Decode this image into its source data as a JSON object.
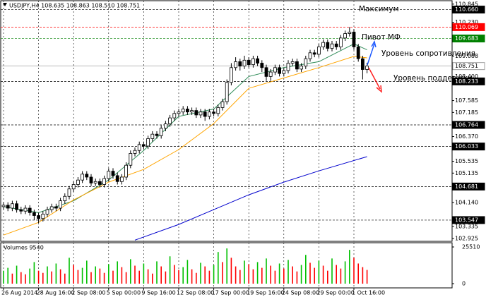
{
  "chart_data": {
    "type": "candlestick",
    "title": "USDJPY,H4  108.635 108.863 108.510 108.751",
    "categories": [
      "26 Aug 2014",
      null,
      null,
      null,
      null,
      null,
      null,
      null,
      "28 Aug 16:00",
      null,
      null,
      null,
      null,
      null,
      null,
      null,
      "2 Sep 08:00",
      null,
      null,
      null,
      null,
      null,
      null,
      null,
      "5 Sep 00:00",
      null,
      null,
      null,
      null,
      null,
      null,
      null,
      "9 Sep 16:00",
      null,
      null,
      null,
      null,
      null,
      null,
      null,
      "12 Sep 08:00",
      null,
      null,
      null,
      null,
      null,
      null,
      null,
      "17 Sep 00:00",
      null,
      null,
      null,
      null,
      null,
      null,
      null,
      "19 Sep 16:00",
      null,
      null,
      null,
      null,
      null,
      null,
      null,
      "24 Sep 08:00",
      null,
      null,
      null,
      null,
      null,
      null,
      null,
      "29 Sep 00:00",
      null,
      null,
      null,
      null,
      null,
      null,
      null,
      "1 Oct 16:00",
      null,
      null,
      null
    ],
    "open": [
      104.0,
      104.05,
      103.95,
      104.1,
      103.9,
      103.85,
      103.95,
      103.8,
      103.7,
      103.6,
      103.75,
      103.9,
      104.0,
      103.95,
      104.2,
      104.35,
      104.6,
      104.75,
      104.9,
      105.1,
      105.0,
      104.8,
      104.85,
      104.75,
      104.95,
      105.2,
      105.05,
      104.85,
      105.0,
      105.4,
      105.8,
      105.9,
      106.1,
      106.05,
      106.3,
      106.45,
      106.4,
      106.65,
      106.8,
      107.0,
      107.15,
      107.2,
      107.3,
      107.2,
      107.25,
      107.1,
      107.2,
      107.05,
      107.2,
      107.15,
      107.35,
      107.55,
      108.2,
      108.7,
      108.9,
      108.75,
      108.95,
      108.8,
      109.0,
      108.85,
      108.7,
      108.4,
      108.55,
      108.7,
      108.5,
      108.6,
      108.85,
      108.9,
      108.65,
      108.75,
      109.0,
      109.2,
      109.15,
      109.4,
      109.55,
      109.35,
      109.5,
      109.4,
      109.7,
      109.85,
      109.9,
      109.4,
      109.0,
      108.635
    ],
    "high": [
      104.15,
      104.15,
      104.2,
      104.2,
      104.0,
      104.05,
      104.05,
      103.9,
      103.8,
      103.85,
      104.0,
      104.1,
      104.1,
      104.3,
      104.45,
      104.7,
      104.85,
      105.0,
      105.2,
      105.2,
      105.1,
      104.95,
      104.95,
      105.05,
      105.3,
      105.3,
      105.15,
      105.1,
      105.5,
      105.9,
      106.0,
      106.2,
      106.2,
      106.4,
      106.55,
      106.55,
      106.75,
      106.9,
      107.1,
      107.25,
      107.3,
      107.4,
      107.4,
      107.35,
      107.35,
      107.3,
      107.3,
      107.3,
      107.3,
      107.45,
      107.65,
      108.3,
      108.85,
      109.05,
      109.0,
      109.1,
      109.05,
      109.1,
      109.1,
      108.95,
      108.8,
      108.65,
      108.8,
      108.8,
      108.7,
      108.95,
      109.0,
      109.0,
      108.85,
      109.1,
      109.3,
      109.3,
      109.5,
      109.65,
      109.65,
      109.6,
      109.6,
      109.8,
      109.95,
      110.07,
      110.0,
      109.5,
      109.1,
      108.863
    ],
    "low": [
      103.9,
      103.85,
      103.85,
      103.8,
      103.75,
      103.75,
      103.7,
      103.55,
      103.45,
      103.5,
      103.65,
      103.8,
      103.85,
      103.85,
      104.1,
      104.25,
      104.5,
      104.65,
      104.8,
      104.9,
      104.7,
      104.7,
      104.65,
      104.65,
      104.85,
      104.95,
      104.75,
      104.75,
      104.9,
      105.3,
      105.7,
      105.8,
      105.95,
      105.95,
      106.2,
      106.3,
      106.3,
      106.55,
      106.7,
      106.9,
      107.05,
      107.1,
      107.1,
      107.1,
      107.0,
      107.0,
      106.9,
      106.95,
      107.05,
      107.05,
      107.25,
      107.45,
      108.1,
      108.6,
      108.6,
      108.65,
      108.7,
      108.7,
      108.75,
      108.55,
      108.25,
      108.25,
      108.45,
      108.4,
      108.4,
      108.5,
      108.75,
      108.55,
      108.55,
      108.65,
      108.9,
      109.05,
      109.05,
      109.3,
      109.25,
      109.25,
      109.3,
      109.3,
      109.6,
      109.75,
      109.3,
      108.9,
      108.3,
      108.51
    ],
    "close": [
      104.05,
      103.95,
      104.1,
      103.9,
      103.85,
      103.95,
      103.8,
      103.7,
      103.6,
      103.75,
      103.9,
      104.0,
      103.95,
      104.2,
      104.35,
      104.6,
      104.75,
      104.9,
      105.1,
      105.0,
      104.8,
      104.85,
      104.75,
      104.95,
      105.2,
      105.05,
      104.85,
      105.0,
      105.4,
      105.8,
      105.9,
      106.1,
      106.05,
      106.3,
      106.45,
      106.4,
      106.65,
      106.8,
      107.0,
      107.15,
      107.2,
      107.3,
      107.2,
      107.25,
      107.1,
      107.2,
      107.05,
      107.2,
      107.15,
      107.35,
      107.55,
      108.2,
      108.7,
      108.9,
      108.75,
      108.95,
      108.8,
      109.0,
      108.85,
      108.7,
      108.4,
      108.55,
      108.7,
      108.5,
      108.6,
      108.85,
      108.9,
      108.65,
      108.75,
      109.0,
      109.2,
      109.15,
      109.4,
      109.55,
      109.35,
      109.5,
      109.4,
      109.7,
      109.85,
      109.9,
      109.4,
      109.0,
      108.635,
      108.751
    ],
    "series": [
      {
        "color": "#2e8b57",
        "x": [
          0,
          8,
          16,
          24,
          32,
          40,
          48,
          56,
          64,
          72,
          80,
          83
        ],
        "values": [
          104.0,
          103.8,
          104.2,
          104.9,
          105.9,
          107.05,
          107.3,
          108.4,
          108.7,
          108.9,
          109.5,
          109.3
        ]
      },
      {
        "color": "#ffa500",
        "x": [
          0,
          8,
          16,
          24,
          32,
          40,
          48,
          56,
          64,
          72,
          80,
          83
        ],
        "values": [
          103.04,
          103.47,
          104.23,
          104.83,
          105.26,
          105.93,
          106.81,
          108.0,
          108.35,
          108.7,
          109.08,
          109.03
        ]
      },
      {
        "color": "#0000cd",
        "x": [
          30,
          40,
          48,
          56,
          64,
          72,
          83
        ],
        "values": [
          102.87,
          103.4,
          103.9,
          104.4,
          104.83,
          105.21,
          105.69
        ]
      }
    ],
    "ylim": [
      102.83,
      110.96
    ],
    "yticks": [
      110.845,
      {
        "value": 110.23,
        "label": "110.230"
      },
      109.088,
      {
        "value": 108.4,
        "label": "108.400"
      },
      107.585,
      107.185,
      {
        "value": 106.37,
        "label": "106.370"
      },
      105.535,
      105.135,
      {
        "value": 104.14,
        "label": "104.140"
      },
      103.335,
      102.925
    ],
    "levels": [
      {
        "value": 110.66,
        "label": "110.660",
        "color": "#000000"
      },
      {
        "value": 110.069,
        "color": "#ff0000"
      },
      {
        "value": 109.683,
        "color": "#008000"
      },
      {
        "value": 108.751,
        "color": "#a0a0a0"
      },
      {
        "value": 108.233,
        "color": "#000000"
      },
      {
        "value": 106.764,
        "color": "#000000"
      },
      {
        "value": 106.033,
        "color": "#000000"
      },
      {
        "value": 104.681,
        "color": "#000000"
      },
      {
        "value": 103.547,
        "color": "#000000"
      }
    ],
    "annotations": [
      "Максимум",
      "Пивот МФ",
      "Уровень сопротивления",
      "Уровень поддержки"
    ],
    "grid": true,
    "volumes": {
      "title": "Volumes 9540",
      "up_color": "#00c000",
      "down_color": "#ff0000",
      "ylim": [
        0,
        27963
      ],
      "yticks": [
        25510,
        0
      ],
      "values": [
        9000,
        11000,
        7000,
        12500,
        8000,
        6500,
        10500,
        15000,
        9000,
        7500,
        12000,
        8500,
        14000,
        10000,
        7000,
        18000,
        13000,
        9500,
        11000,
        16000,
        8000,
        12000,
        10500,
        7500,
        13500,
        9000,
        15500,
        11500,
        8000,
        17000,
        12500,
        9000,
        14000,
        10000,
        7000,
        15500,
        12000,
        8500,
        19000,
        13000,
        9500,
        11500,
        16500,
        10000,
        7500,
        14500,
        12000,
        9000,
        13000,
        22000,
        15000,
        24500,
        18000,
        12000,
        9500,
        16000,
        13500,
        10000,
        15000,
        11000,
        17500,
        12500,
        9000,
        14000,
        10500,
        16500,
        12000,
        8500,
        13000,
        20000,
        14500,
        11000,
        16000,
        12500,
        9000,
        17500,
        13000,
        10500,
        15500,
        23500,
        18000,
        14000,
        11500,
        9540
      ]
    }
  }
}
